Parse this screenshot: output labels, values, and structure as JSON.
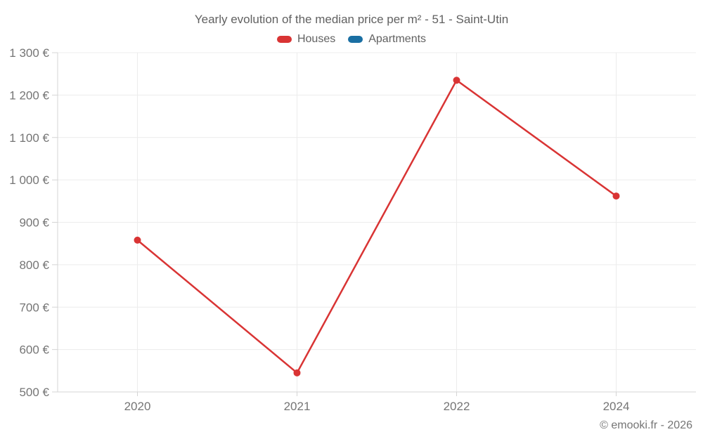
{
  "chart_data": {
    "type": "line",
    "title": "Yearly evolution of the median price per m² - 51 - Saint-Utin",
    "categories": [
      "2020",
      "2021",
      "2022",
      "2024"
    ],
    "series": [
      {
        "name": "Houses",
        "color": "#d93434",
        "values": [
          858,
          545,
          1235,
          962
        ]
      },
      {
        "name": "Apartments",
        "color": "#1a6fa3",
        "values": []
      }
    ],
    "ylim": [
      500,
      1300
    ],
    "ytick_step": 100,
    "ytick_suffix": " €",
    "xlabel": "",
    "ylabel": "",
    "grid": true,
    "legend_position": "top",
    "colors": {
      "gridline": "#ececec",
      "axis": "#d4d4d4",
      "tick_label": "#757575",
      "title_text": "#616161"
    }
  },
  "footer": {
    "copyright": "© emooki.fr - 2026"
  }
}
